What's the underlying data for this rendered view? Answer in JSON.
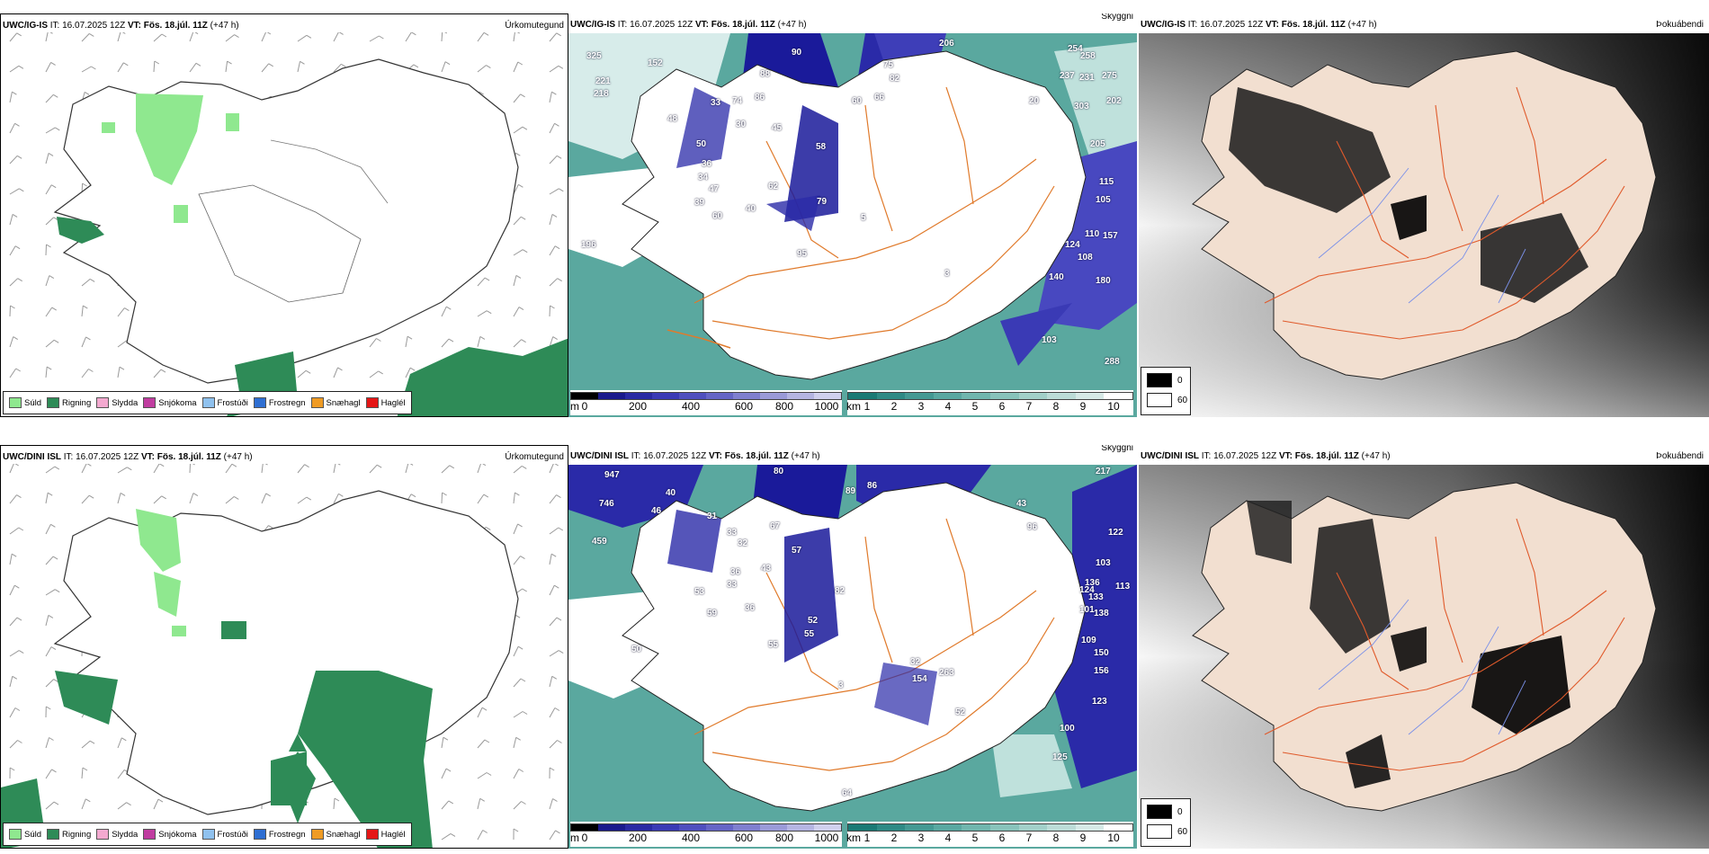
{
  "rows": [
    {
      "model": "UWC/IG-IS",
      "it_label": "IT:",
      "it_value": "16.07.2025 12Z",
      "vt_label": "VT:",
      "vt_value": "Fös. 18.júl. 11Z",
      "lead": "(+47 h)",
      "panel_titles": [
        "Úrkomutegund",
        "Skyggni",
        "Þokuábendi"
      ],
      "visibility_labels_m": [
        "325",
        "152",
        "221",
        "218",
        "33",
        "74",
        "86",
        "88",
        "90",
        "75",
        "82",
        "66",
        "60",
        "45",
        "30",
        "48",
        "50",
        "36",
        "34",
        "47",
        "39",
        "60",
        "62",
        "40",
        "79",
        "58",
        "95",
        "196",
        "206",
        "254",
        "258",
        "237",
        "231",
        "275",
        "303",
        "202",
        "205",
        "115",
        "105",
        "110",
        "157",
        "124",
        "108",
        "140",
        "180",
        "103",
        "288",
        "20"
      ],
      "visibility_labels_km": [
        "5",
        "3"
      ]
    },
    {
      "model": "UWC/DINI ISL",
      "it_label": "IT:",
      "it_value": "16.07.2025 12Z",
      "vt_label": "VT:",
      "vt_value": "Fös. 18.júl. 11Z",
      "lead": "(+47 h)",
      "panel_titles": [
        "Úrkomutegund",
        "Skyggni",
        "Þokuábendi"
      ],
      "visibility_labels_m": [
        "947",
        "746",
        "459",
        "40",
        "46",
        "31",
        "33",
        "32",
        "67",
        "80",
        "89",
        "86",
        "36",
        "43",
        "57",
        "33",
        "53",
        "59",
        "36",
        "52",
        "55",
        "55",
        "82",
        "32",
        "154",
        "263",
        "52",
        "125",
        "100",
        "123",
        "156",
        "150",
        "109",
        "138",
        "133",
        "101",
        "136",
        "124",
        "103",
        "122",
        "113",
        "217",
        "96",
        "43",
        "64",
        "50"
      ],
      "visibility_labels_km": [
        "3"
      ]
    }
  ],
  "precip_legend": [
    {
      "label": "Súld",
      "color": "#8fe88f"
    },
    {
      "label": "Rigning",
      "color": "#2e8b57"
    },
    {
      "label": "Slydda",
      "color": "#f4a9d0"
    },
    {
      "label": "Snjókoma",
      "color": "#c03da0"
    },
    {
      "label": "Frostúði",
      "color": "#8fc1ee"
    },
    {
      "label": "Frostregn",
      "color": "#2f6fd2"
    },
    {
      "label": "Snæhagl",
      "color": "#ef9b24"
    },
    {
      "label": "Haglél",
      "color": "#e51616"
    }
  ],
  "visibility_scale_m": {
    "unit": "m",
    "ticks": [
      "0",
      "200",
      "400",
      "600",
      "800",
      "1000"
    ],
    "colors": [
      "#000000",
      "#1a1a8c",
      "#2a2aa3",
      "#3a3ab5",
      "#4f4fbe",
      "#6565c6",
      "#7f7fcf",
      "#9a9ad8",
      "#b5b5e2",
      "#d0d0ed"
    ]
  },
  "visibility_scale_km": {
    "unit": "km",
    "ticks": [
      "1",
      "2",
      "3",
      "4",
      "5",
      "6",
      "7",
      "8",
      "9",
      "10"
    ],
    "colors": [
      "#1a7a75",
      "#2f8a85",
      "#449993",
      "#59a8a1",
      "#70b6ae",
      "#88c3bb",
      "#a2d0c9",
      "#bcdcd7",
      "#d6e9e6",
      "#ffffff"
    ]
  },
  "fog_legend": [
    {
      "value": "0",
      "color": "#000000"
    },
    {
      "value": "60",
      "color": "#ffffff"
    }
  ]
}
